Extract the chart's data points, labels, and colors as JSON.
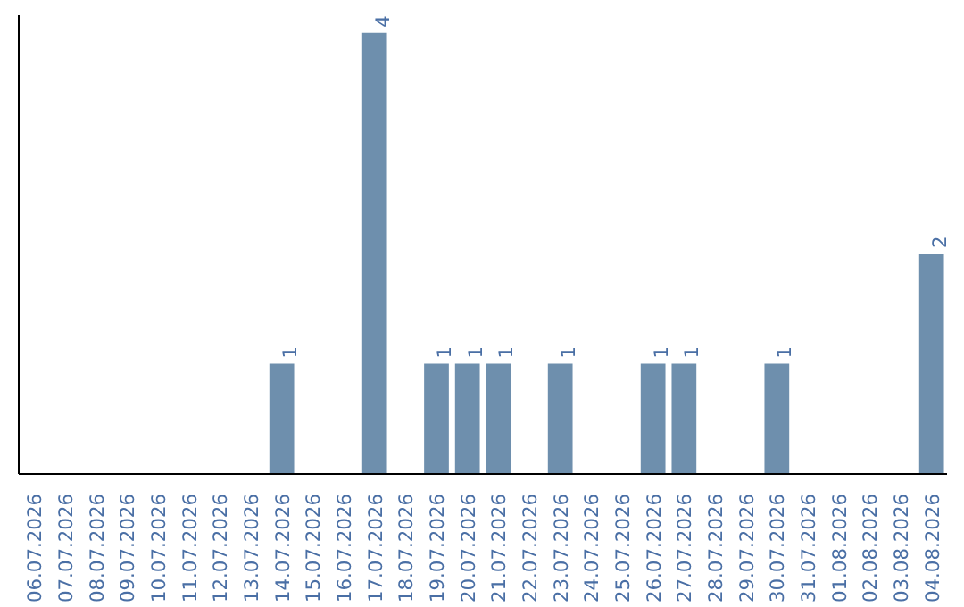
{
  "chart_data": {
    "type": "bar",
    "categories": [
      "06.07.2026",
      "07.07.2026",
      "08.07.2026",
      "09.07.2026",
      "10.07.2026",
      "11.07.2026",
      "12.07.2026",
      "13.07.2026",
      "14.07.2026",
      "15.07.2026",
      "16.07.2026",
      "17.07.2026",
      "18.07.2026",
      "19.07.2026",
      "20.07.2026",
      "21.07.2026",
      "22.07.2026",
      "23.07.2026",
      "24.07.2026",
      "25.07.2026",
      "26.07.2026",
      "27.07.2026",
      "28.07.2026",
      "29.07.2026",
      "30.07.2026",
      "31.07.2026",
      "01.08.2026",
      "02.08.2026",
      "03.08.2026",
      "04.08.2026"
    ],
    "values": [
      0,
      0,
      0,
      0,
      0,
      0,
      0,
      0,
      1,
      0,
      0,
      4,
      0,
      1,
      1,
      1,
      0,
      1,
      0,
      0,
      1,
      1,
      0,
      0,
      1,
      0,
      0,
      0,
      0,
      2
    ],
    "value_labels": [
      null,
      null,
      null,
      null,
      null,
      null,
      null,
      null,
      "1",
      null,
      null,
      "4",
      null,
      "1",
      "1",
      "1",
      null,
      "1",
      null,
      null,
      "1",
      "1",
      null,
      null,
      "1",
      null,
      null,
      null,
      null,
      "2"
    ],
    "color": "#6e8fad",
    "tick_labels": "x"
  }
}
